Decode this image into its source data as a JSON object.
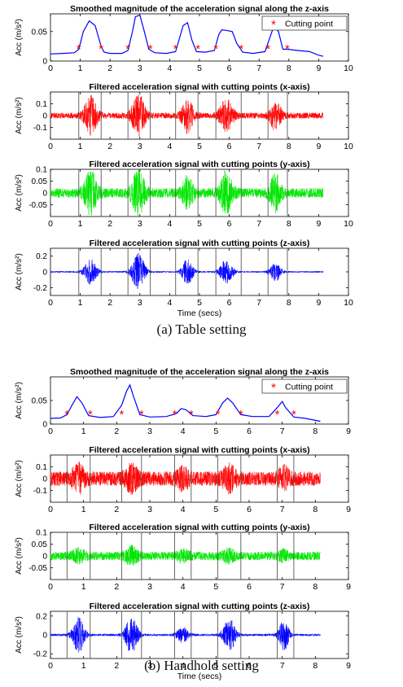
{
  "figure": {
    "captions": [
      "(a)  Table setting",
      "(b)  Handhold setting"
    ]
  },
  "chart_data": [
    {
      "panel": "a1",
      "type": "line",
      "title": "Smoothed magnitude of the acceleration signal along the z-axis",
      "xlabel": "",
      "ylabel": "Acc (m/s²)",
      "xlim": [
        0,
        10
      ],
      "ylim": [
        0,
        0.08
      ],
      "xticks": [
        0,
        1,
        2,
        3,
        4,
        5,
        6,
        7,
        8,
        9,
        10
      ],
      "yticks": [
        0,
        0.05
      ],
      "legend": {
        "label": "Cutting point",
        "position": "top-right"
      },
      "series": [
        {
          "color": "#0000ff",
          "x": [
            0,
            0.4,
            0.8,
            0.95,
            1.1,
            1.3,
            1.5,
            1.7,
            1.8,
            2.0,
            2.4,
            2.6,
            2.75,
            2.85,
            3.0,
            3.15,
            3.3,
            3.5,
            3.9,
            4.2,
            4.35,
            4.45,
            4.6,
            4.75,
            4.9,
            5.2,
            5.5,
            5.65,
            5.75,
            5.9,
            6.1,
            6.25,
            6.45,
            6.8,
            7.2,
            7.4,
            7.5,
            7.65,
            7.8,
            7.95,
            8.3,
            8.7,
            9.0,
            9.15
          ],
          "y": [
            0.012,
            0.013,
            0.014,
            0.02,
            0.05,
            0.068,
            0.06,
            0.025,
            0.015,
            0.013,
            0.013,
            0.018,
            0.05,
            0.075,
            0.078,
            0.05,
            0.02,
            0.014,
            0.013,
            0.016,
            0.042,
            0.06,
            0.065,
            0.035,
            0.016,
            0.015,
            0.018,
            0.045,
            0.053,
            0.052,
            0.05,
            0.03,
            0.015,
            0.013,
            0.016,
            0.045,
            0.06,
            0.05,
            0.02,
            0.02,
            0.018,
            0.016,
            0.01,
            0.008
          ]
        }
      ],
      "markers": {
        "color": "#ff0000",
        "x": [
          0.95,
          1.7,
          2.6,
          3.35,
          4.2,
          4.95,
          5.55,
          6.4,
          7.3,
          7.95
        ],
        "y": [
          0.022,
          0.022,
          0.022,
          0.022,
          0.022,
          0.022,
          0.022,
          0.022,
          0.022,
          0.022
        ]
      }
    },
    {
      "panel": "a2",
      "type": "line",
      "title": "Filtered acceleration signal with cutting points (x-axis)",
      "xlabel": "",
      "ylabel": "Acc (m/s²)",
      "xlim": [
        0,
        10
      ],
      "ylim": [
        -0.2,
        0.2
      ],
      "yticks": [
        -0.1,
        0,
        0.1
      ],
      "xticks": [
        0,
        1,
        2,
        3,
        4,
        5,
        6,
        7,
        8,
        9,
        10
      ],
      "color": "#ff0000",
      "duration": 9.15,
      "noise_amplitude": 0.025,
      "bursts": [
        {
          "center": 1.35,
          "width": 0.35,
          "amplitude": 0.15
        },
        {
          "center": 2.95,
          "width": 0.35,
          "amplitude": 0.17
        },
        {
          "center": 4.6,
          "width": 0.3,
          "amplitude": 0.14
        },
        {
          "center": 5.9,
          "width": 0.35,
          "amplitude": 0.13
        },
        {
          "center": 7.55,
          "width": 0.3,
          "amplitude": 0.12
        }
      ],
      "cutting_lines": [
        0.95,
        1.7,
        2.6,
        3.35,
        4.2,
        4.95,
        5.55,
        6.4,
        7.3,
        7.95
      ]
    },
    {
      "panel": "a3",
      "type": "line",
      "title": "Filtered acceleration signal with cutting points (y-axis)",
      "xlabel": "",
      "ylabel": "Acc (m/s²)",
      "xlim": [
        0,
        10
      ],
      "ylim": [
        -0.1,
        0.1
      ],
      "yticks": [
        -0.05,
        0,
        0.05,
        0.1
      ],
      "xticks": [
        0,
        1,
        2,
        3,
        4,
        5,
        6,
        7,
        8,
        9,
        10
      ],
      "color": "#00e600",
      "duration": 9.15,
      "noise_amplitude": 0.02,
      "bursts": [
        {
          "center": 1.35,
          "width": 0.35,
          "amplitude": 0.08
        },
        {
          "center": 2.95,
          "width": 0.35,
          "amplitude": 0.09
        },
        {
          "center": 4.6,
          "width": 0.3,
          "amplitude": 0.06
        },
        {
          "center": 5.9,
          "width": 0.35,
          "amplitude": 0.08
        },
        {
          "center": 7.55,
          "width": 0.3,
          "amplitude": 0.07
        }
      ],
      "cutting_lines": [
        0.95,
        1.7,
        2.6,
        3.35,
        4.2,
        4.95,
        5.55,
        6.4,
        7.3,
        7.95
      ]
    },
    {
      "panel": "a4",
      "type": "line",
      "title": "Filtered acceleration signal with cutting points (z-axis)",
      "xlabel": "Time (secs)",
      "ylabel": "Acc (m/s²)",
      "xlim": [
        0,
        10
      ],
      "ylim": [
        -0.3,
        0.3
      ],
      "yticks": [
        -0.2,
        0,
        0.2
      ],
      "xticks": [
        0,
        1,
        2,
        3,
        4,
        5,
        6,
        7,
        8,
        9,
        10
      ],
      "color": "#0000ff",
      "duration": 9.15,
      "noise_amplitude": 0.01,
      "bursts": [
        {
          "center": 1.35,
          "width": 0.35,
          "amplitude": 0.16
        },
        {
          "center": 2.95,
          "width": 0.35,
          "amplitude": 0.24
        },
        {
          "center": 4.6,
          "width": 0.3,
          "amplitude": 0.17
        },
        {
          "center": 5.9,
          "width": 0.35,
          "amplitude": 0.16
        },
        {
          "center": 7.55,
          "width": 0.3,
          "amplitude": 0.12
        }
      ],
      "cutting_lines": [
        0.95,
        1.7,
        2.6,
        3.35,
        4.2,
        4.95,
        5.55,
        6.4,
        7.3,
        7.95
      ]
    },
    {
      "panel": "b1",
      "type": "line",
      "title": "Smoothed magnitude of the acceleration signal along the z-axis",
      "xlabel": "",
      "ylabel": "Acc (m/s²)",
      "xlim": [
        0,
        9
      ],
      "ylim": [
        0,
        0.1
      ],
      "xticks": [
        0,
        1,
        2,
        3,
        4,
        5,
        6,
        7,
        8,
        9
      ],
      "yticks": [
        0,
        0.05
      ],
      "legend": {
        "label": "Cutting point",
        "position": "top-right"
      },
      "series": [
        {
          "color": "#0000ff",
          "x": [
            0,
            0.3,
            0.5,
            0.65,
            0.8,
            0.95,
            1.15,
            1.5,
            1.9,
            2.15,
            2.3,
            2.4,
            2.5,
            2.7,
            3.0,
            3.5,
            3.8,
            3.95,
            4.1,
            4.3,
            4.7,
            5.0,
            5.2,
            5.35,
            5.5,
            5.75,
            6.1,
            6.6,
            6.85,
            7.0,
            7.1,
            7.35,
            7.7,
            8.0,
            8.15
          ],
          "y": [
            0.012,
            0.013,
            0.02,
            0.04,
            0.058,
            0.045,
            0.018,
            0.014,
            0.016,
            0.04,
            0.07,
            0.083,
            0.06,
            0.02,
            0.015,
            0.016,
            0.022,
            0.033,
            0.03,
            0.018,
            0.016,
            0.02,
            0.045,
            0.055,
            0.045,
            0.02,
            0.016,
            0.016,
            0.035,
            0.048,
            0.035,
            0.015,
            0.012,
            0.008,
            0.006
          ]
        }
      ],
      "markers": {
        "color": "#ff0000",
        "x": [
          0.5,
          1.2,
          2.15,
          2.75,
          3.75,
          4.25,
          5.05,
          5.75,
          6.85,
          7.35
        ],
        "y": [
          0.022,
          0.022,
          0.022,
          0.022,
          0.022,
          0.022,
          0.022,
          0.022,
          0.022,
          0.022
        ]
      }
    },
    {
      "panel": "b2",
      "type": "line",
      "title": "Filtered acceleration signal with cutting points (x-axis)",
      "xlabel": "",
      "ylabel": "Acc (m/s²)",
      "xlim": [
        0,
        9
      ],
      "ylim": [
        -0.2,
        0.2
      ],
      "yticks": [
        -0.1,
        0,
        0.1
      ],
      "xticks": [
        0,
        1,
        2,
        3,
        4,
        5,
        6,
        7,
        8,
        9
      ],
      "color": "#ff0000",
      "duration": 8.15,
      "noise_amplitude": 0.06,
      "bursts": [
        {
          "center": 0.85,
          "width": 0.3,
          "amplitude": 0.09
        },
        {
          "center": 2.45,
          "width": 0.3,
          "amplitude": 0.08
        },
        {
          "center": 4.0,
          "width": 0.3,
          "amplitude": 0.06
        },
        {
          "center": 5.4,
          "width": 0.3,
          "amplitude": 0.08
        },
        {
          "center": 7.05,
          "width": 0.25,
          "amplitude": 0.07
        }
      ],
      "cutting_lines": [
        0.5,
        1.2,
        2.15,
        2.75,
        3.75,
        4.25,
        5.05,
        5.75,
        6.85,
        7.35
      ]
    },
    {
      "panel": "b3",
      "type": "line",
      "title": "Filtered acceleration signal with cutting points (y-axis)",
      "xlabel": "",
      "ylabel": "Acc (m/s²)",
      "xlim": [
        0,
        9
      ],
      "ylim": [
        -0.1,
        0.1
      ],
      "yticks": [
        -0.05,
        0,
        0.05,
        0.1
      ],
      "xticks": [
        0,
        1,
        2,
        3,
        4,
        5,
        6,
        7,
        8,
        9
      ],
      "color": "#00e600",
      "duration": 8.15,
      "noise_amplitude": 0.018,
      "bursts": [
        {
          "center": 0.85,
          "width": 0.3,
          "amplitude": 0.02
        },
        {
          "center": 2.45,
          "width": 0.3,
          "amplitude": 0.03
        },
        {
          "center": 4.0,
          "width": 0.3,
          "amplitude": 0.015
        },
        {
          "center": 5.4,
          "width": 0.3,
          "amplitude": 0.02
        },
        {
          "center": 7.05,
          "width": 0.25,
          "amplitude": 0.015
        }
      ],
      "cutting_lines": [
        0.5,
        1.2,
        2.15,
        2.75,
        3.75,
        4.25,
        5.05,
        5.75,
        6.85,
        7.35
      ]
    },
    {
      "panel": "b4",
      "type": "line",
      "title": "Filtered acceleration signal with cutting points (z-axis)",
      "xlabel": "Time (secs)",
      "ylabel": "Acc (m/s²)",
      "xlim": [
        0,
        9
      ],
      "ylim": [
        -0.25,
        0.25
      ],
      "yticks": [
        -0.2,
        0,
        0.2
      ],
      "xticks": [
        0,
        1,
        2,
        3,
        4,
        5,
        6,
        7,
        8,
        9
      ],
      "color": "#0000ff",
      "duration": 8.15,
      "noise_amplitude": 0.012,
      "bursts": [
        {
          "center": 0.85,
          "width": 0.3,
          "amplitude": 0.18
        },
        {
          "center": 2.45,
          "width": 0.3,
          "amplitude": 0.2
        },
        {
          "center": 4.0,
          "width": 0.3,
          "amplitude": 0.08
        },
        {
          "center": 5.4,
          "width": 0.3,
          "amplitude": 0.17
        },
        {
          "center": 7.05,
          "width": 0.25,
          "amplitude": 0.16
        }
      ],
      "cutting_lines": [
        0.5,
        1.2,
        2.15,
        2.75,
        3.75,
        4.25,
        5.05,
        5.75,
        6.85,
        7.35
      ]
    }
  ]
}
